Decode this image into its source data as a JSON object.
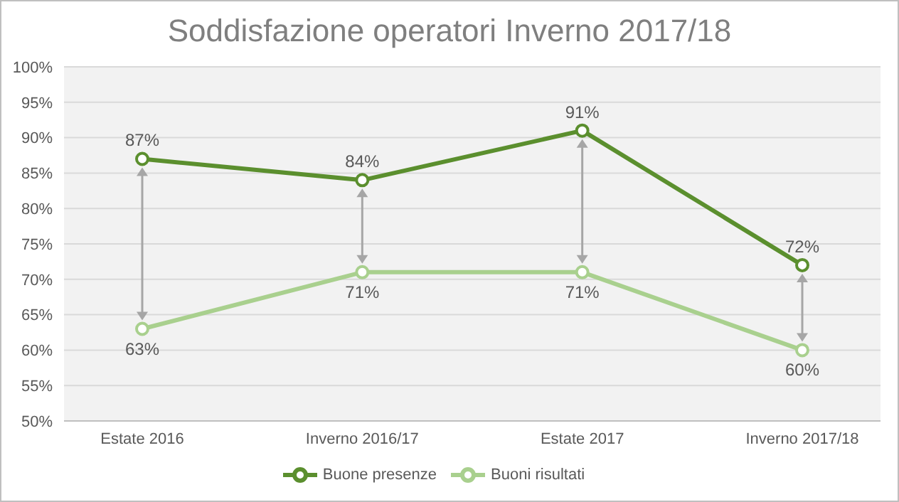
{
  "chart_data": {
    "type": "line",
    "title": "Soddisfazione operatori Inverno 2017/18",
    "categories": [
      "Estate 2016",
      "Inverno 2016/17",
      "Estate 2017",
      "Inverno 2017/18"
    ],
    "series": [
      {
        "name": "Buone presenze",
        "color": "#5b8f2e",
        "values": [
          87,
          84,
          91,
          72
        ],
        "value_labels": [
          "87%",
          "84%",
          "91%",
          "72%"
        ]
      },
      {
        "name": "Buoni risultati",
        "color": "#a9d08e",
        "values": [
          63,
          71,
          71,
          60
        ],
        "value_labels": [
          "63%",
          "71%",
          "71%",
          "60%"
        ]
      }
    ],
    "ylim": [
      50,
      100
    ],
    "yticks": [
      {
        "value": 50,
        "label": "50%"
      },
      {
        "value": 55,
        "label": "55%"
      },
      {
        "value": 60,
        "label": "60%"
      },
      {
        "value": 65,
        "label": "65%"
      },
      {
        "value": 70,
        "label": "70%"
      },
      {
        "value": 75,
        "label": "75%"
      },
      {
        "value": 80,
        "label": "80%"
      },
      {
        "value": 85,
        "label": "85%"
      },
      {
        "value": 90,
        "label": "90%"
      },
      {
        "value": 95,
        "label": "95%"
      },
      {
        "value": 100,
        "label": "100%"
      }
    ],
    "grid": "y",
    "legend": "bottom",
    "marker": "circle",
    "line_style": "solid"
  }
}
